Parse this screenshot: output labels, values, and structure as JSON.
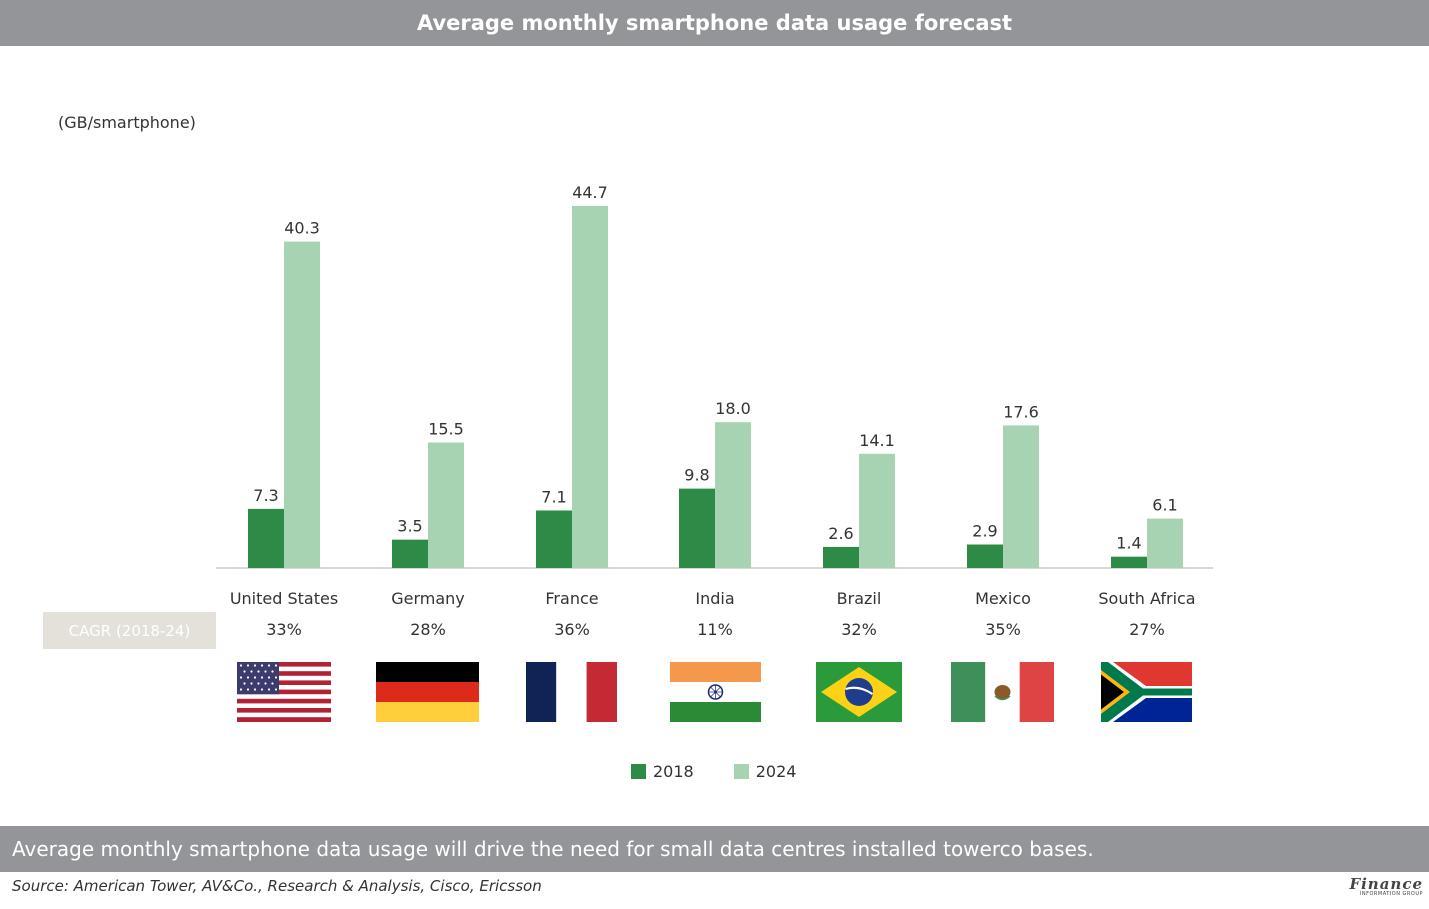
{
  "header": {
    "title": "Average monthly smartphone data usage forecast"
  },
  "unit_label": "(GB/smartphone)",
  "cagr": {
    "label": "CAGR (2018-24)",
    "values": [
      "33%",
      "28%",
      "36%",
      "11%",
      "32%",
      "35%",
      "27%"
    ]
  },
  "flags": [
    "us-flag-icon",
    "germany-flag-icon",
    "france-flag-icon",
    "india-flag-icon",
    "brazil-flag-icon",
    "mexico-flag-icon",
    "south-africa-flag-icon"
  ],
  "chart_data": {
    "type": "bar",
    "categories": [
      "United States",
      "Germany",
      "France",
      "India",
      "Brazil",
      "Mexico",
      "South Africa"
    ],
    "series": [
      {
        "name": "2018",
        "values": [
          7.3,
          3.5,
          7.1,
          9.8,
          2.6,
          2.9,
          1.4
        ],
        "color": "#2e8b47"
      },
      {
        "name": "2024",
        "values": [
          40.3,
          15.5,
          44.7,
          18.0,
          14.1,
          17.6,
          6.1
        ],
        "color": "#a8d3b3"
      }
    ],
    "value_labels": [
      [
        "7.3",
        "3.5",
        "7.1",
        "9.8",
        "2.6",
        "2.9",
        "1.4"
      ],
      [
        "40.3",
        "15.5",
        "44.7",
        "18.0",
        "14.1",
        "17.6",
        "6.1"
      ]
    ],
    "ylim": [
      0,
      45
    ],
    "legend_position": "bottom-center",
    "grid": false
  },
  "footer": {
    "note": "Average monthly smartphone data usage will drive the need for small data centres installed towerco bases.",
    "source": "Source: American Tower, AV&Co., Research & Analysis, Cisco, Ericsson",
    "logo_main": "Finance",
    "logo_sub": "INFORMATION GROUP"
  }
}
